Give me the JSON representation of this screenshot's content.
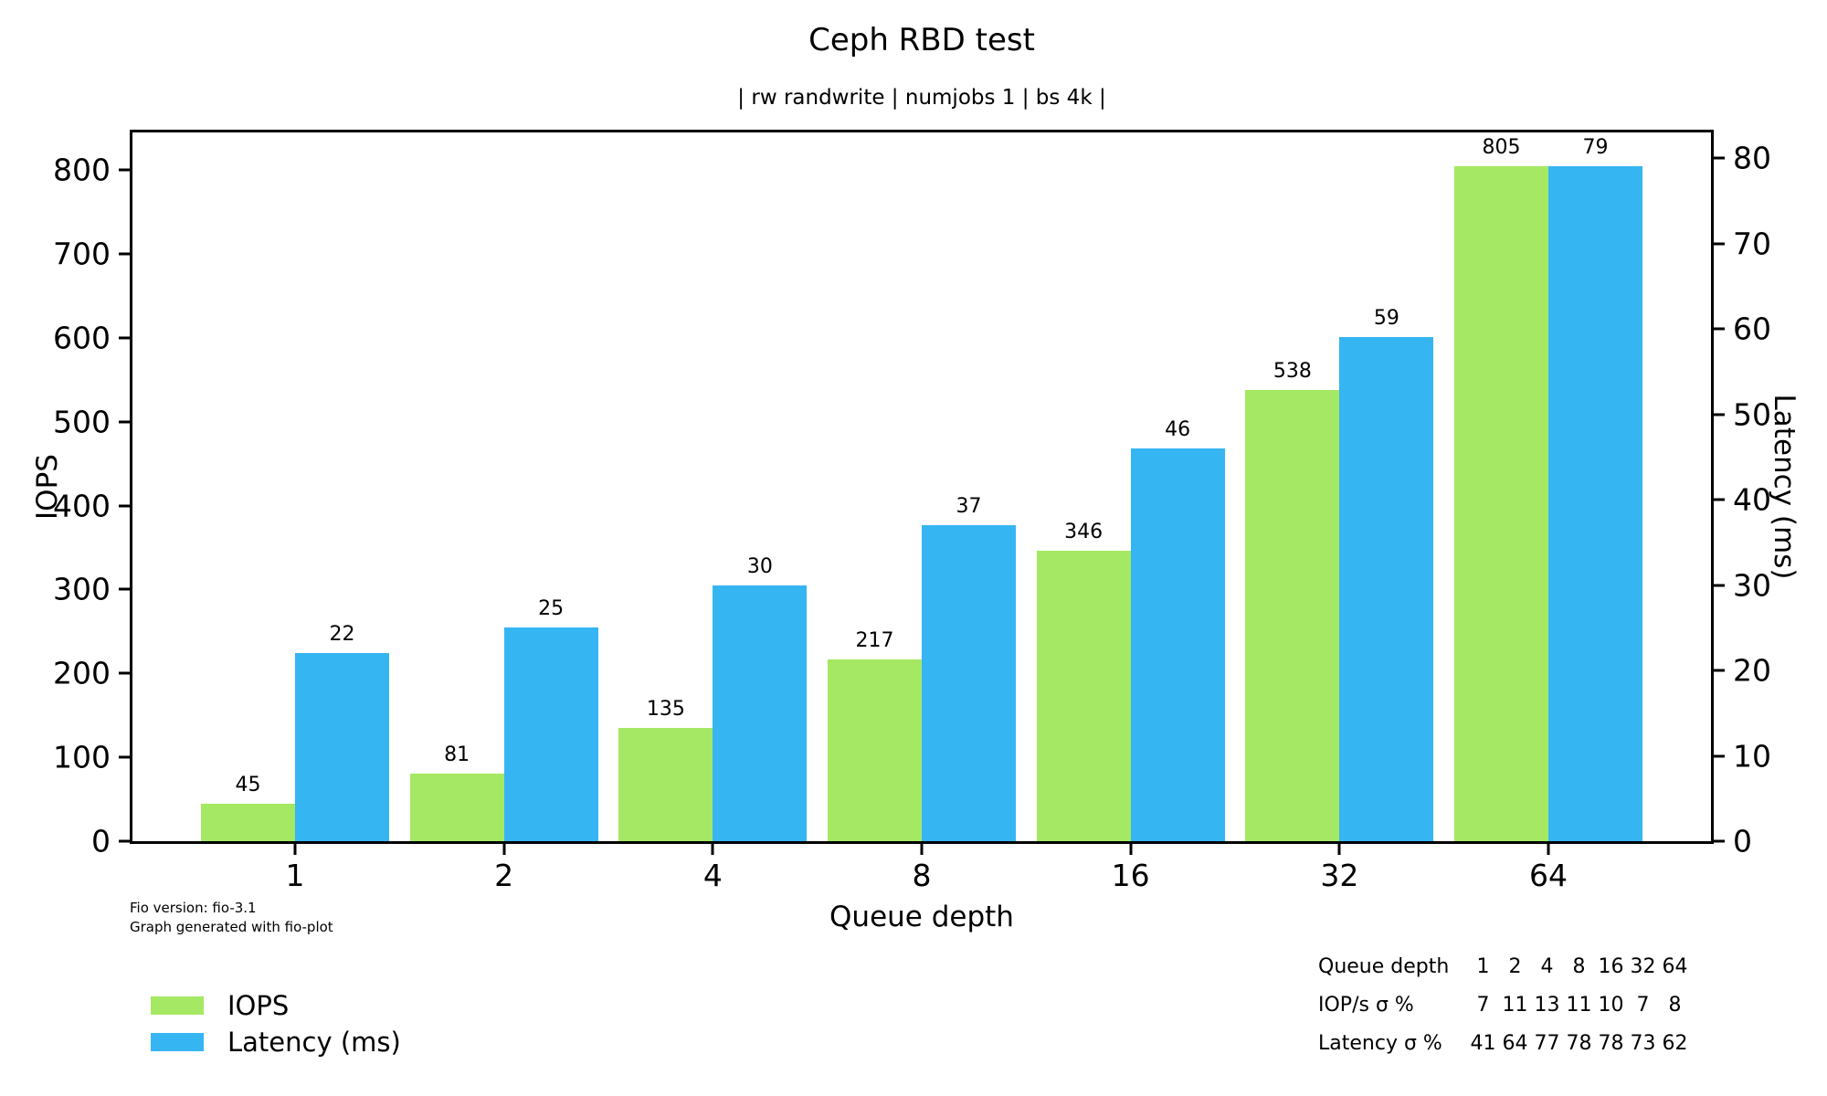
{
  "title": "Ceph RBD test",
  "subtitle": "| rw randwrite | numjobs 1 | bs 4k |",
  "footer": {
    "line1": "Fio version: fio-3.1",
    "line2": "Graph generated with fio-plot"
  },
  "colors": {
    "iops_bar": "#a5e863",
    "latency_bar": "#35b5f2",
    "axis": "#000000",
    "background": "#ffffff",
    "text": "#000000"
  },
  "chart_data": {
    "type": "bar",
    "title": "Ceph RBD test",
    "subtitle": "| rw randwrite | numjobs 1 | bs 4k |",
    "xlabel": "Queue depth",
    "ylabel_left": "IOPS",
    "ylabel_right": "Latency (ms)",
    "categories": [
      "1",
      "2",
      "4",
      "8",
      "16",
      "32",
      "64"
    ],
    "series": [
      {
        "name": "IOPS",
        "axis": "left",
        "color": "#a5e863",
        "values": [
          45,
          81,
          135,
          217,
          346,
          538,
          805
        ]
      },
      {
        "name": "Latency (ms)",
        "axis": "right",
        "color": "#35b5f2",
        "values": [
          22,
          25,
          30,
          37,
          46,
          59,
          79
        ]
      }
    ],
    "ylim_left": [
      0,
      845
    ],
    "ylim_right": [
      0,
      83
    ],
    "yticks_left": [
      0,
      100,
      200,
      300,
      400,
      500,
      600,
      700,
      800
    ],
    "yticks_right": [
      0,
      10,
      20,
      30,
      40,
      50,
      60,
      70,
      80
    ],
    "bar_value_labels": true,
    "grid": false,
    "legend_position": "bottom-left"
  },
  "legend": {
    "items": [
      {
        "label": "IOPS",
        "color": "#a5e863"
      },
      {
        "label": "Latency (ms)",
        "color": "#35b5f2"
      }
    ]
  },
  "stats_table": {
    "rows": [
      {
        "label": "Queue depth",
        "values": [
          "1",
          "2",
          "4",
          "8",
          "16",
          "32",
          "64"
        ]
      },
      {
        "label": "IOP/s σ %",
        "values": [
          "7",
          "11",
          "13",
          "11",
          "10",
          "7",
          "8"
        ]
      },
      {
        "label": "Latency σ %",
        "values": [
          "41",
          "64",
          "77",
          "78",
          "78",
          "73",
          "62"
        ]
      }
    ]
  }
}
